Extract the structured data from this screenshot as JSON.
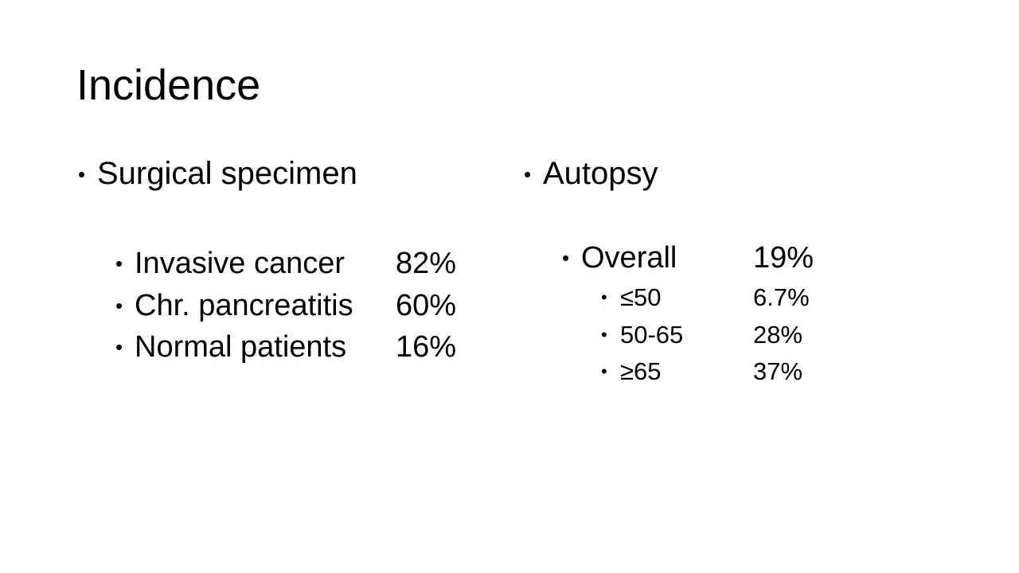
{
  "title": "Incidence",
  "left": {
    "heading": "Surgical specimen",
    "items": [
      {
        "label": "Invasive cancer",
        "value": "82%"
      },
      {
        "label": "Chr. pancreatitis",
        "value": "60%"
      },
      {
        "label": "Normal patients",
        "value": "16%"
      }
    ]
  },
  "right": {
    "heading": "Autopsy",
    "overall": {
      "label": "Overall",
      "value": "19%"
    },
    "subitems": [
      {
        "label": "≤50",
        "value": "6.7%"
      },
      {
        "label": "50-65",
        "value": "28%"
      },
      {
        "label": "≥65",
        "value": "37%"
      }
    ]
  }
}
